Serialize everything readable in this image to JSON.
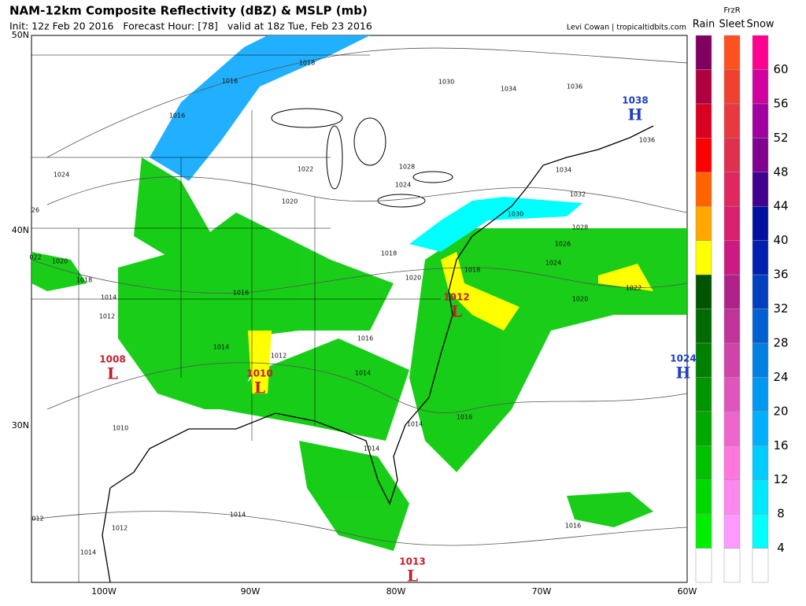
{
  "header": {
    "title": "NAM-12km Composite Reflectivity (dBZ) & MSLP (mb)",
    "subtitle": "Init: 12z Feb 20 2016   Forecast Hour: [78]   valid at 18z Tue, Feb 23 2016",
    "credit": "Levi Cowan | tropicaltidbits.com"
  },
  "map": {
    "lat_labels": [
      "50N",
      "40N",
      "30N"
    ],
    "lon_labels": [
      "100W",
      "90W",
      "80W",
      "70W",
      "60W"
    ],
    "pressure_centers": [
      {
        "letter": "H",
        "value": "1038",
        "color": "#1f3fbf"
      },
      {
        "letter": "L",
        "value": "1012",
        "color": "#c0202a"
      },
      {
        "letter": "L",
        "value": "1010",
        "color": "#c0202a"
      },
      {
        "letter": "L",
        "value": "1008",
        "color": "#c0202a"
      },
      {
        "letter": "L",
        "value": "1013",
        "color": "#c0202a"
      },
      {
        "letter": "H",
        "value": "1024",
        "color": "#1f3fbf"
      }
    ],
    "isobar_labels": [
      "1018",
      "1016",
      "1016",
      "1024",
      "1022",
      "1020",
      "1030",
      "1034",
      "1036",
      "1036",
      "1034",
      "1032",
      "1030",
      "1028",
      "1026",
      "1024",
      "1020",
      "1022",
      "1028",
      "1024",
      "1018",
      "1020",
      "1018",
      "1014",
      "1012",
      "1014",
      "1012",
      "1016",
      "1016",
      "1014",
      "1010",
      "1014",
      "1016",
      "1014",
      "1014",
      "1012",
      "012",
      "1014",
      "1016",
      "1020",
      "1018",
      "022",
      "26"
    ]
  },
  "legend": {
    "headers": [
      "Rain",
      "FrzR",
      "Sleet",
      "Snow"
    ],
    "ticks": [
      4,
      8,
      12,
      16,
      20,
      24,
      28,
      32,
      36,
      40,
      44,
      48,
      52,
      56,
      60
    ],
    "rain_colors": [
      "#ffffff",
      "#00ee00",
      "#00d800",
      "#00c000",
      "#00a800",
      "#009400",
      "#008000",
      "#006c00",
      "#005400",
      "#ffff00",
      "#ffa800",
      "#ff6400",
      "#ff0000",
      "#d80020",
      "#b00040",
      "#800060"
    ],
    "sleet_colors": [
      "#ffffff",
      "#ff99ff",
      "#ff88ee",
      "#ff77dd",
      "#ee66cc",
      "#e055bb",
      "#d044aa",
      "#c03399",
      "#b02288",
      "#cc1a80",
      "#d82070",
      "#e02860",
      "#e03050",
      "#e83840",
      "#f04030",
      "#ff5020"
    ],
    "snow_colors": [
      "#ffffff",
      "#00ffff",
      "#00e8ff",
      "#00ccff",
      "#00b0ff",
      "#0098f0",
      "#0080e0",
      "#0060d0",
      "#0040c0",
      "#0020b0",
      "#0010a0",
      "#400090",
      "#800090",
      "#a000a0",
      "#d000a0",
      "#ff0090"
    ]
  }
}
